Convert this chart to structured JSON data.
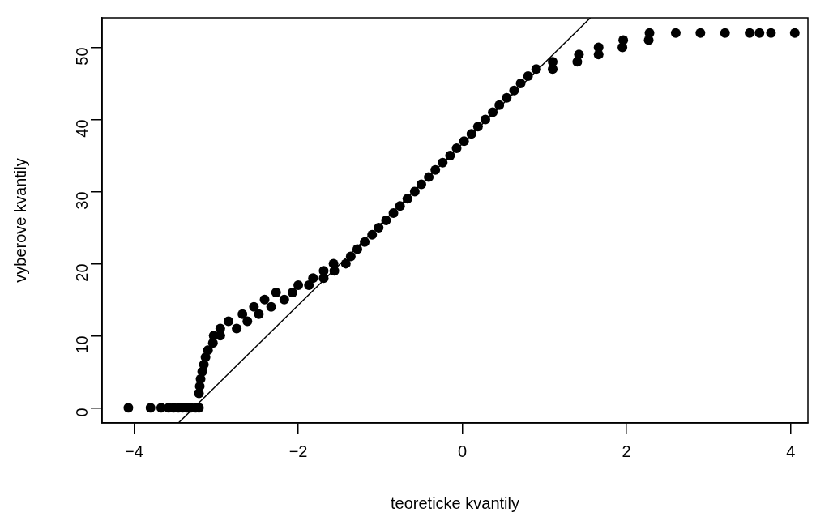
{
  "chart_data": {
    "type": "scatter",
    "xlabel": "teoreticke kvantily",
    "ylabel": "vyberove kvantily",
    "xlim": [
      -4.39,
      4.21
    ],
    "ylim": [
      -2.1,
      54.1
    ],
    "xticks": [
      {
        "value": -4,
        "label": "−4"
      },
      {
        "value": -2,
        "label": "−2"
      },
      0,
      2,
      4
    ],
    "yticks": [
      0,
      10,
      20,
      30,
      40,
      50
    ],
    "grid": false,
    "legend": false,
    "marker": "circle",
    "series": [
      {
        "color": "#000000",
        "x": [
          -4.07,
          -3.8,
          -3.67,
          -3.58,
          -3.52,
          -3.46,
          -3.41,
          -3.36,
          -3.31,
          -3.25,
          -3.21,
          -3.21,
          -3.2,
          -3.19,
          -3.17,
          -3.15,
          -3.13,
          -3.1,
          -3.04,
          -3.03,
          -2.95,
          -2.95,
          -2.75,
          -2.85,
          -2.62,
          -2.68,
          -2.48,
          -2.54,
          -2.33,
          -2.41,
          -2.17,
          -2.27,
          -2.07,
          -2.0,
          -1.87,
          -1.82,
          -1.69,
          -1.69,
          -1.56,
          -1.57,
          -1.42,
          -1.36,
          -1.28,
          -1.19,
          -1.1,
          -1.02,
          -0.93,
          -0.84,
          -0.76,
          -0.67,
          -0.58,
          -0.5,
          -0.41,
          -0.33,
          -0.24,
          -0.15,
          -0.07,
          0.02,
          0.11,
          0.19,
          0.28,
          0.37,
          0.45,
          0.54,
          0.63,
          0.71,
          0.8,
          0.9,
          1.1,
          1.1,
          1.4,
          1.42,
          1.66,
          1.66,
          1.95,
          1.96,
          2.27,
          2.28,
          2.6,
          2.9,
          3.2,
          3.5,
          3.62,
          3.76,
          4.05
        ],
        "values": [
          0,
          0,
          0,
          0,
          0,
          0,
          0,
          0,
          0,
          0,
          0,
          2,
          3,
          4,
          5,
          6,
          7,
          8,
          9,
          10,
          10,
          11,
          11,
          12,
          12,
          13,
          13,
          14,
          14,
          15,
          15,
          16,
          16,
          17,
          17,
          18,
          18,
          19,
          19,
          20,
          20,
          21,
          22,
          23,
          24,
          25,
          26,
          27,
          28,
          29,
          30,
          31,
          32,
          33,
          34,
          35,
          36,
          37,
          38,
          39,
          40,
          41,
          42,
          43,
          44,
          45,
          46,
          47,
          47,
          48,
          48,
          49,
          49,
          50,
          50,
          51,
          51,
          52,
          52,
          52,
          52,
          52,
          52,
          52,
          52
        ]
      },
      {
        "type": "line",
        "color": "#000000",
        "marker": "none",
        "x": [
          -3.46,
          1.56
        ],
        "values": [
          -2.1,
          54.1
        ]
      }
    ]
  }
}
